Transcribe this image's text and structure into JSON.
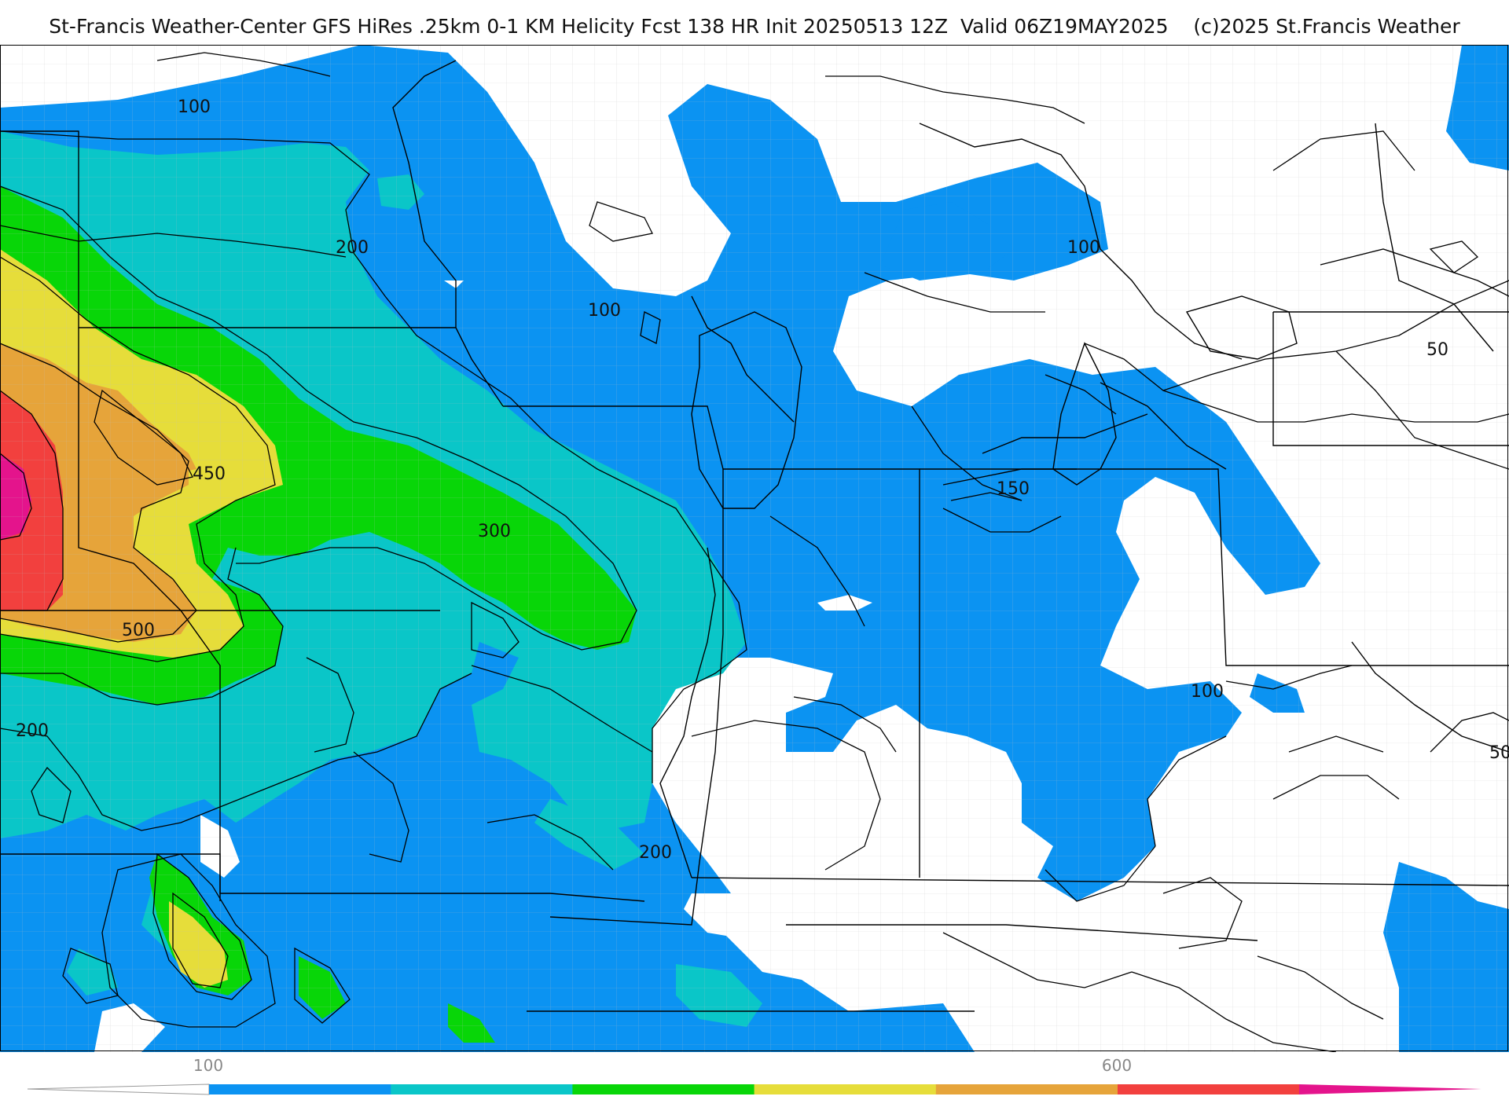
{
  "title": "St-Francis Weather-Center GFS HiRes .25km 0-1 KM Helicity Fcst 138 HR Init 20250513 12Z  Valid 06Z19MAY2025    (c)2025 St.Francis Weather",
  "contour_labels": [
    {
      "id": "100a",
      "text": "100"
    },
    {
      "id": "200a",
      "text": "200"
    },
    {
      "id": "100b",
      "text": "100"
    },
    {
      "id": "100c",
      "text": "100"
    },
    {
      "id": "50a",
      "text": "50"
    },
    {
      "id": "450",
      "text": "450"
    },
    {
      "id": "300",
      "text": "300"
    },
    {
      "id": "150",
      "text": "150"
    },
    {
      "id": "500",
      "text": "500"
    },
    {
      "id": "100d",
      "text": "100"
    },
    {
      "id": "200b",
      "text": "200"
    },
    {
      "id": "50b",
      "text": "50"
    },
    {
      "id": "200c",
      "text": "200"
    }
  ],
  "colors": {
    "lt100": "#ffffff",
    "c100": "#0b93f2",
    "c200": "#0ac6c8",
    "c300": "#08d608",
    "c400": "#e6dd3a",
    "c500": "#e6a43a",
    "c600": "#f2403e",
    "c700": "#e4148c",
    "border": "#000000",
    "county": "#b8b8b8"
  },
  "legend": {
    "ticks": [
      {
        "value": "100"
      },
      {
        "value": "600"
      }
    ],
    "bins": [
      "#0b93f2",
      "#0ac6c8",
      "#08d608",
      "#e6dd3a",
      "#e6a43a",
      "#f2403e"
    ]
  }
}
